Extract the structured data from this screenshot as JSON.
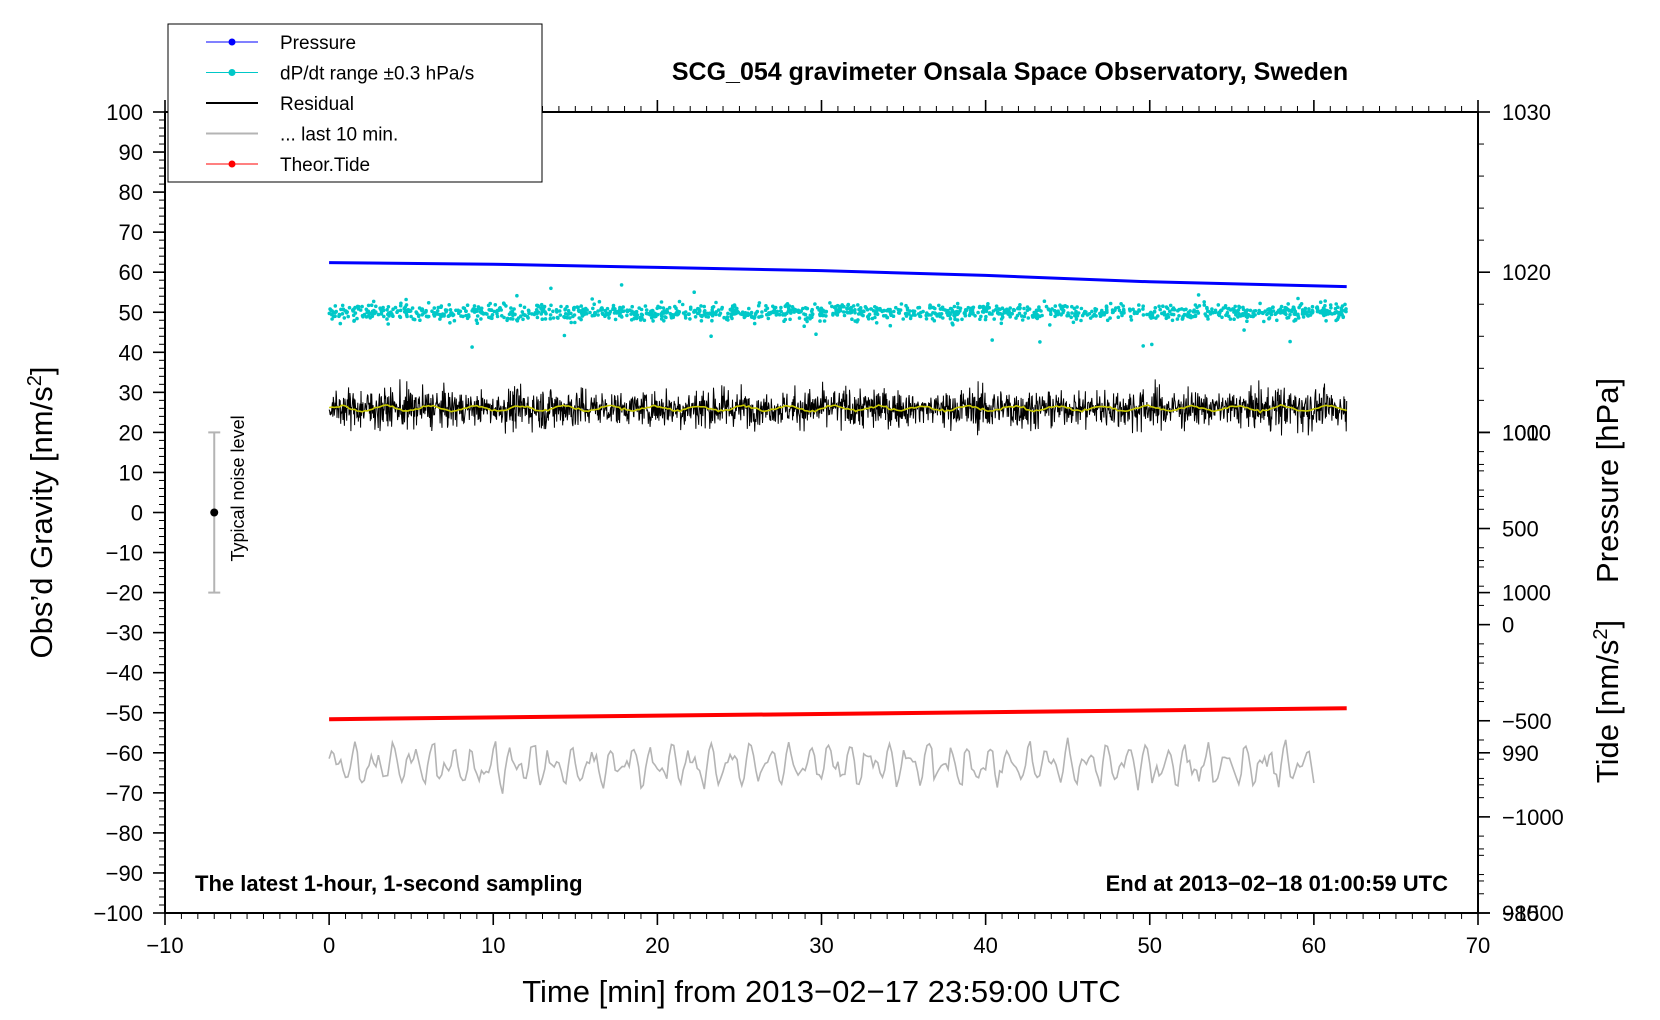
{
  "chart_data": {
    "type": "line",
    "title": "SCG_054 gravimeter Onsala Space Observatory, Sweden",
    "xlabel": "Time [min] from 2013−02−17 23:59:00 UTC",
    "ylabel_left": "Obs’d Gravity [nm/s²]",
    "ylabel_right_top": "Pressure [hPa]",
    "ylabel_right_bottom": "Tide [nm/s²]",
    "xlim": [
      -10,
      70
    ],
    "ylim": [
      -100,
      100
    ],
    "x_ticks": [
      -10,
      0,
      10,
      20,
      30,
      40,
      50,
      60,
      70
    ],
    "y_ticks": [
      100,
      90,
      80,
      70,
      60,
      50,
      40,
      30,
      20,
      10,
      0,
      -10,
      -20,
      -30,
      -40,
      -50,
      -60,
      -70,
      -80,
      -90,
      -100
    ],
    "pressure_axis": {
      "ylim": [
        980,
        1030
      ],
      "ticks": [
        1030,
        1020,
        1010,
        1000,
        990,
        980
      ],
      "maps_to_gravity": [
        -100,
        100
      ]
    },
    "tide_axis": {
      "ylim": [
        -1500,
        1000
      ],
      "ticks": [
        1000,
        500,
        0,
        -500,
        -1000,
        -1500
      ],
      "maps_to_gravity": [
        -100,
        20
      ]
    },
    "legend": [
      {
        "label": "Pressure",
        "color": "#0000ff",
        "style": "line-dot"
      },
      {
        "label": "dP/dt range ±0.3 hPa/s",
        "color": "#00c8c8",
        "style": "line-dot"
      },
      {
        "label": "Residual",
        "color": "#000000",
        "style": "line"
      },
      {
        "label": "... last 10 min.",
        "color": "#b4b4b4",
        "style": "line"
      },
      {
        "label": "Theor.Tide",
        "color": "#ff0000",
        "style": "line-dot"
      }
    ],
    "annotations": {
      "bottom_left": "The latest 1-hour, 1-second sampling",
      "bottom_right": "End at 2013−02−18 01:00:59 UTC",
      "noise_label": "Typical noise level"
    },
    "noise_bar": {
      "x": -7,
      "center": 0,
      "low": -20,
      "high": 20
    },
    "series": [
      {
        "name": "Pressure",
        "color": "#0000ff",
        "x": [
          0,
          10,
          20,
          30,
          40,
          50,
          62
        ],
        "y": [
          1020.6,
          1020.5,
          1020.3,
          1020.1,
          1019.8,
          1019.4,
          1019.1
        ]
      },
      {
        "name": "dP/dt range ±0.3 hPa/s",
        "color": "#00c8c8",
        "center": 50,
        "spread": 3,
        "x_range": [
          0,
          62
        ]
      },
      {
        "name": "Residual",
        "color": "#000000",
        "center": 26,
        "spread": 7,
        "x_range": [
          0,
          62
        ]
      },
      {
        "name": "Residual smoothed",
        "color": "#c8c800",
        "center": 26,
        "x_range": [
          0,
          62
        ]
      },
      {
        "name": "... last 10 min.",
        "color": "#b4b4b4",
        "center": -63,
        "spread": 6,
        "x_range": [
          0,
          60
        ]
      },
      {
        "name": "Theor.Tide",
        "color": "#ff0000",
        "x": [
          0,
          62
        ],
        "y": [
          -51.6,
          -48.9
        ]
      }
    ]
  }
}
